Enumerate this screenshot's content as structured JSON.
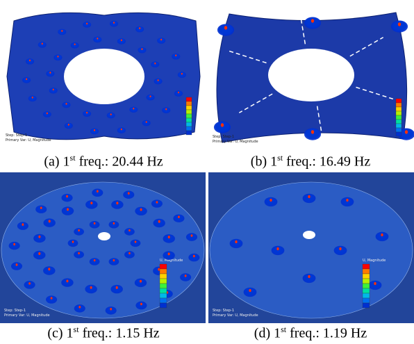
{
  "panels": [
    {
      "caption": {
        "prefix": "(a) 1",
        "sup": "st",
        "suffix": "freq.: 20.44 Hz"
      },
      "info": [
        "Step: Step-1",
        "Primary Var: U, Magnitude"
      ]
    },
    {
      "caption": {
        "prefix": "(b) 1",
        "sup": "st",
        "suffix": "freq.: 16.49 Hz"
      },
      "info": [
        "Step: Step-1",
        "Primary Var: U, Magnitude"
      ]
    },
    {
      "caption": {
        "prefix": "(c) 1",
        "sup": "st",
        "suffix": "freq.: 1.15 Hz"
      },
      "info": [
        "Step: Step-1",
        "Primary Var: U, Magnitude"
      ],
      "legend_title": "U, Magnitude"
    },
    {
      "caption": {
        "prefix": "(d) 1",
        "sup": "st",
        "suffix": "freq.: 1.19 Hz"
      },
      "info": [
        "Step: Step-1",
        "Primary Var: U, Magnitude"
      ],
      "legend_title": "U, Magnitude"
    }
  ]
}
